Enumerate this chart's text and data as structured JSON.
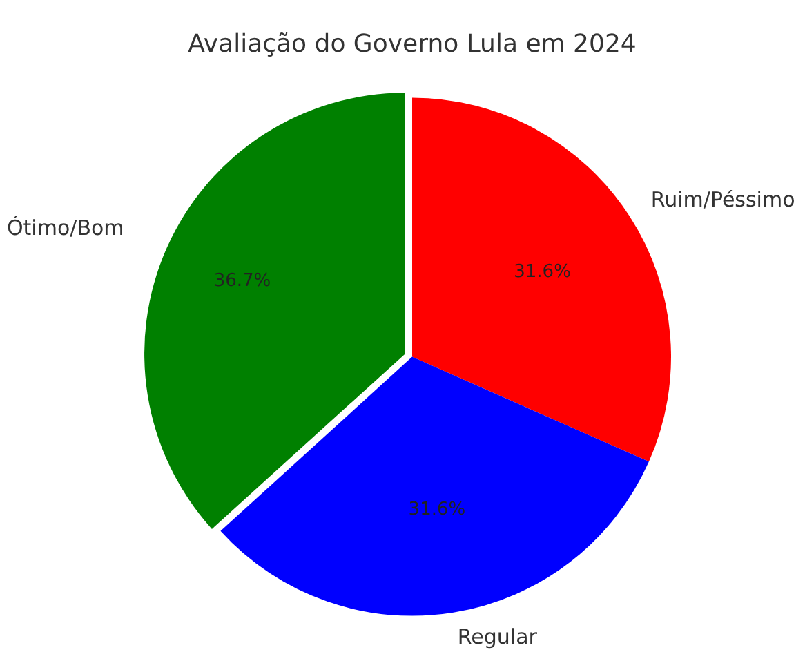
{
  "chart_data": {
    "type": "pie",
    "title": "Avaliação do Governo Lula em 2024",
    "categories": [
      "Ótimo/Bom",
      "Regular",
      "Ruim/Péssimo"
    ],
    "values": [
      36.7,
      31.6,
      31.6
    ],
    "colors": [
      "#008000",
      "#0000ff",
      "#ff0000"
    ],
    "value_labels": [
      "36.7%",
      "31.6%",
      "31.6%"
    ],
    "legend": false
  }
}
